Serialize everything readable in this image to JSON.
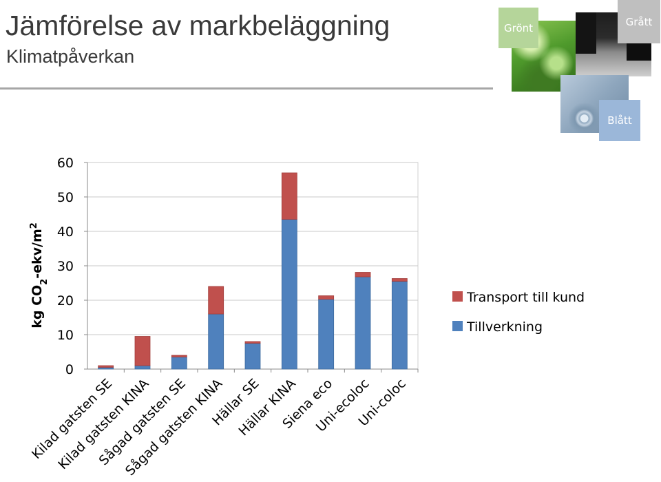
{
  "header": {
    "title": "Jämförelse av markbeläggning",
    "subtitle": "Klimatpåverkan"
  },
  "tiles": {
    "green": {
      "label": "Grönt",
      "color": "#b5d59a"
    },
    "grey": {
      "label": "Grått",
      "color": "#bfbfbf"
    },
    "blue": {
      "label": "Blått",
      "color": "#9bb7d9"
    }
  },
  "chart_data": {
    "type": "bar",
    "stacked": true,
    "title": "",
    "xlabel": "",
    "ylabel": "kg CO2-ekv/m2",
    "ylim": [
      0,
      60
    ],
    "yticks": [
      0,
      10,
      20,
      30,
      40,
      50,
      60
    ],
    "grid": true,
    "legend_position": "right",
    "categories": [
      "Kilad gatsten SE",
      "Kilad gatsten KINA",
      "Sågad gatsten SE",
      "Sågad gatsten KINA",
      "Hällar SE",
      "Hällar KINA",
      "Siena eco",
      "Uni-ecoloc",
      "Uni-coloc"
    ],
    "series": [
      {
        "name": "Tillverkning",
        "color": "#4f81bd",
        "values": [
          0.5,
          1,
          3.5,
          16,
          7.5,
          43.5,
          20.3,
          26.8,
          25.5
        ]
      },
      {
        "name": "Transport till kund",
        "color": "#c0504d",
        "values": [
          0.5,
          8.5,
          0.5,
          8,
          0.5,
          13.5,
          1,
          1.3,
          0.8
        ]
      }
    ]
  }
}
